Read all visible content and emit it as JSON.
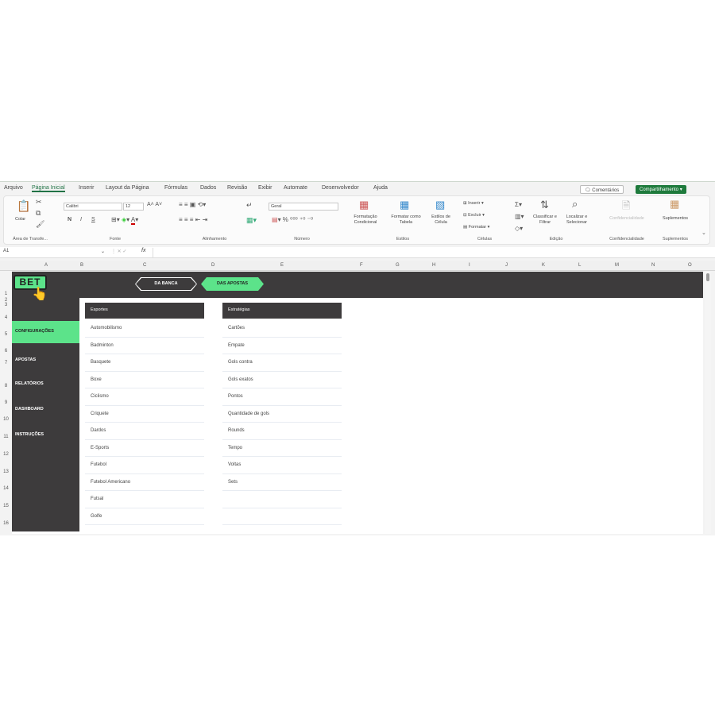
{
  "menu": {
    "tabs": [
      "Arquivo",
      "Página Inicial",
      "Inserir",
      "Layout da Página",
      "Fórmulas",
      "Dados",
      "Revisão",
      "Exibir",
      "Automate",
      "Desenvolvedor",
      "Ajuda"
    ],
    "comments": "Comentários",
    "share": "Compartilhamento"
  },
  "ribbon": {
    "paste": "Colar",
    "font_name": "Calibri",
    "font_size": "12",
    "number_format": "Geral",
    "bold": "N",
    "italic": "I",
    "underline": "S",
    "cond_format": "Formatação Condicional",
    "format_table": "Formatar como Tabela",
    "cell_styles": "Estilos de Célula",
    "insert": "Inserir",
    "delete": "Excluir",
    "format": "Formatar",
    "sort_filter": "Classificar e Filtrar",
    "find_select": "Localizar e Selecionar",
    "sensitivity": "Confidencialidade",
    "addins": "Suplementos",
    "groups": [
      "Área de Transfe...",
      "Fonte",
      "Alinhamento",
      "Número",
      "Estilos",
      "Células",
      "Edição",
      "Confidencialidade",
      "Suplementos"
    ]
  },
  "formula_bar": {
    "name_box": "A1",
    "fx": "fx",
    "value": ""
  },
  "columns": [
    "A",
    "B",
    "C",
    "D",
    "E",
    "F",
    "G",
    "H",
    "I",
    "J",
    "K",
    "L",
    "M",
    "N",
    "O"
  ],
  "rows": [
    "1",
    "2",
    "3",
    "4",
    "5",
    "6",
    "7",
    "8",
    "9",
    "10",
    "11",
    "12",
    "13",
    "14",
    "15",
    "16"
  ],
  "app": {
    "logo": "BET",
    "nav": [
      "DA BANCA",
      "DAS APOSTAS"
    ],
    "sidebar": [
      "CONFIGURAÇÕES",
      "APOSTAS",
      "RELATÓRIOS",
      "DASHBOARD",
      "INSTRUÇÕES"
    ],
    "accent": "#5ce38a",
    "dark": "#3d3b3c"
  },
  "lists": {
    "sports": {
      "header": "Esportes",
      "items": [
        "Automobilismo",
        "Badminton",
        "Basquete",
        "Boxe",
        "Ciclismo",
        "Criquete",
        "Dardos",
        "E-Sports",
        "Futebol",
        "Futebol Americano",
        "Futsal",
        "Golfe"
      ]
    },
    "strategies": {
      "header": "Estratégias",
      "items": [
        "Cartões",
        "Empate",
        "Gols contra",
        "Gols exatos",
        "Pontos",
        "Quantidade de gols",
        "Rounds",
        "Tempo",
        "Voltas",
        "Sets",
        "",
        ""
      ]
    }
  }
}
